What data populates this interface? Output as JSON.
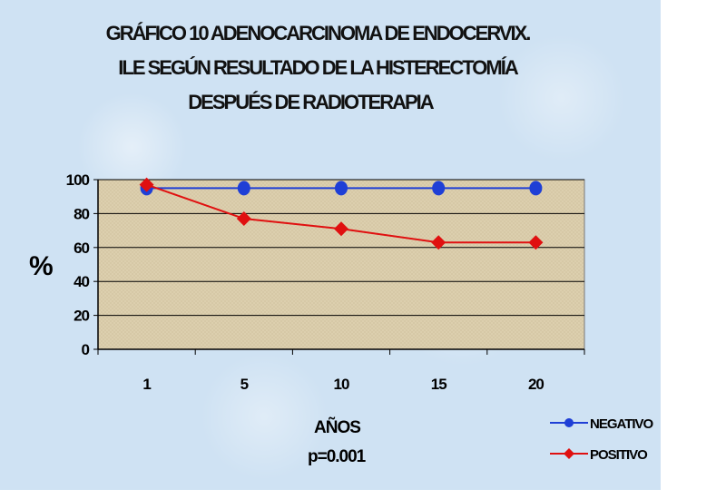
{
  "title_lines": [
    "GRÁFICO 10  ADENOCARCINOMA DE ENDOCERVIX.",
    "ILE SEGÚN RESULTADO DE LA HISTERECTOMÍA",
    "DESPUÉS DE RADIOTERAPIA"
  ],
  "chart_data": {
    "type": "line",
    "title": "GRÁFICO 10  ADENOCARCINOMA DE ENDOCERVIX. ILE SEGÚN RESULTADO DE LA HISTERECTOMÍA DESPUÉS DE RADIOTERAPIA",
    "categories": [
      "1",
      "5",
      "10",
      "15",
      "20"
    ],
    "series": [
      {
        "name": "NEGATIVO",
        "values": [
          95,
          95,
          95,
          95,
          95
        ],
        "color": "#1f3fd6",
        "marker": "circle"
      },
      {
        "name": "POSITIVO",
        "values": [
          97,
          77,
          71,
          63,
          63
        ],
        "color": "#e01010",
        "marker": "diamond"
      }
    ],
    "xlabel": "AÑOS",
    "ylabel": "%",
    "annotation": "p=0.001",
    "ylim": [
      0,
      100
    ],
    "yticks": [
      0,
      20,
      40,
      60,
      80,
      100
    ],
    "grid": true,
    "legend_position": "bottom-right",
    "plot_background": "#dccfae"
  }
}
